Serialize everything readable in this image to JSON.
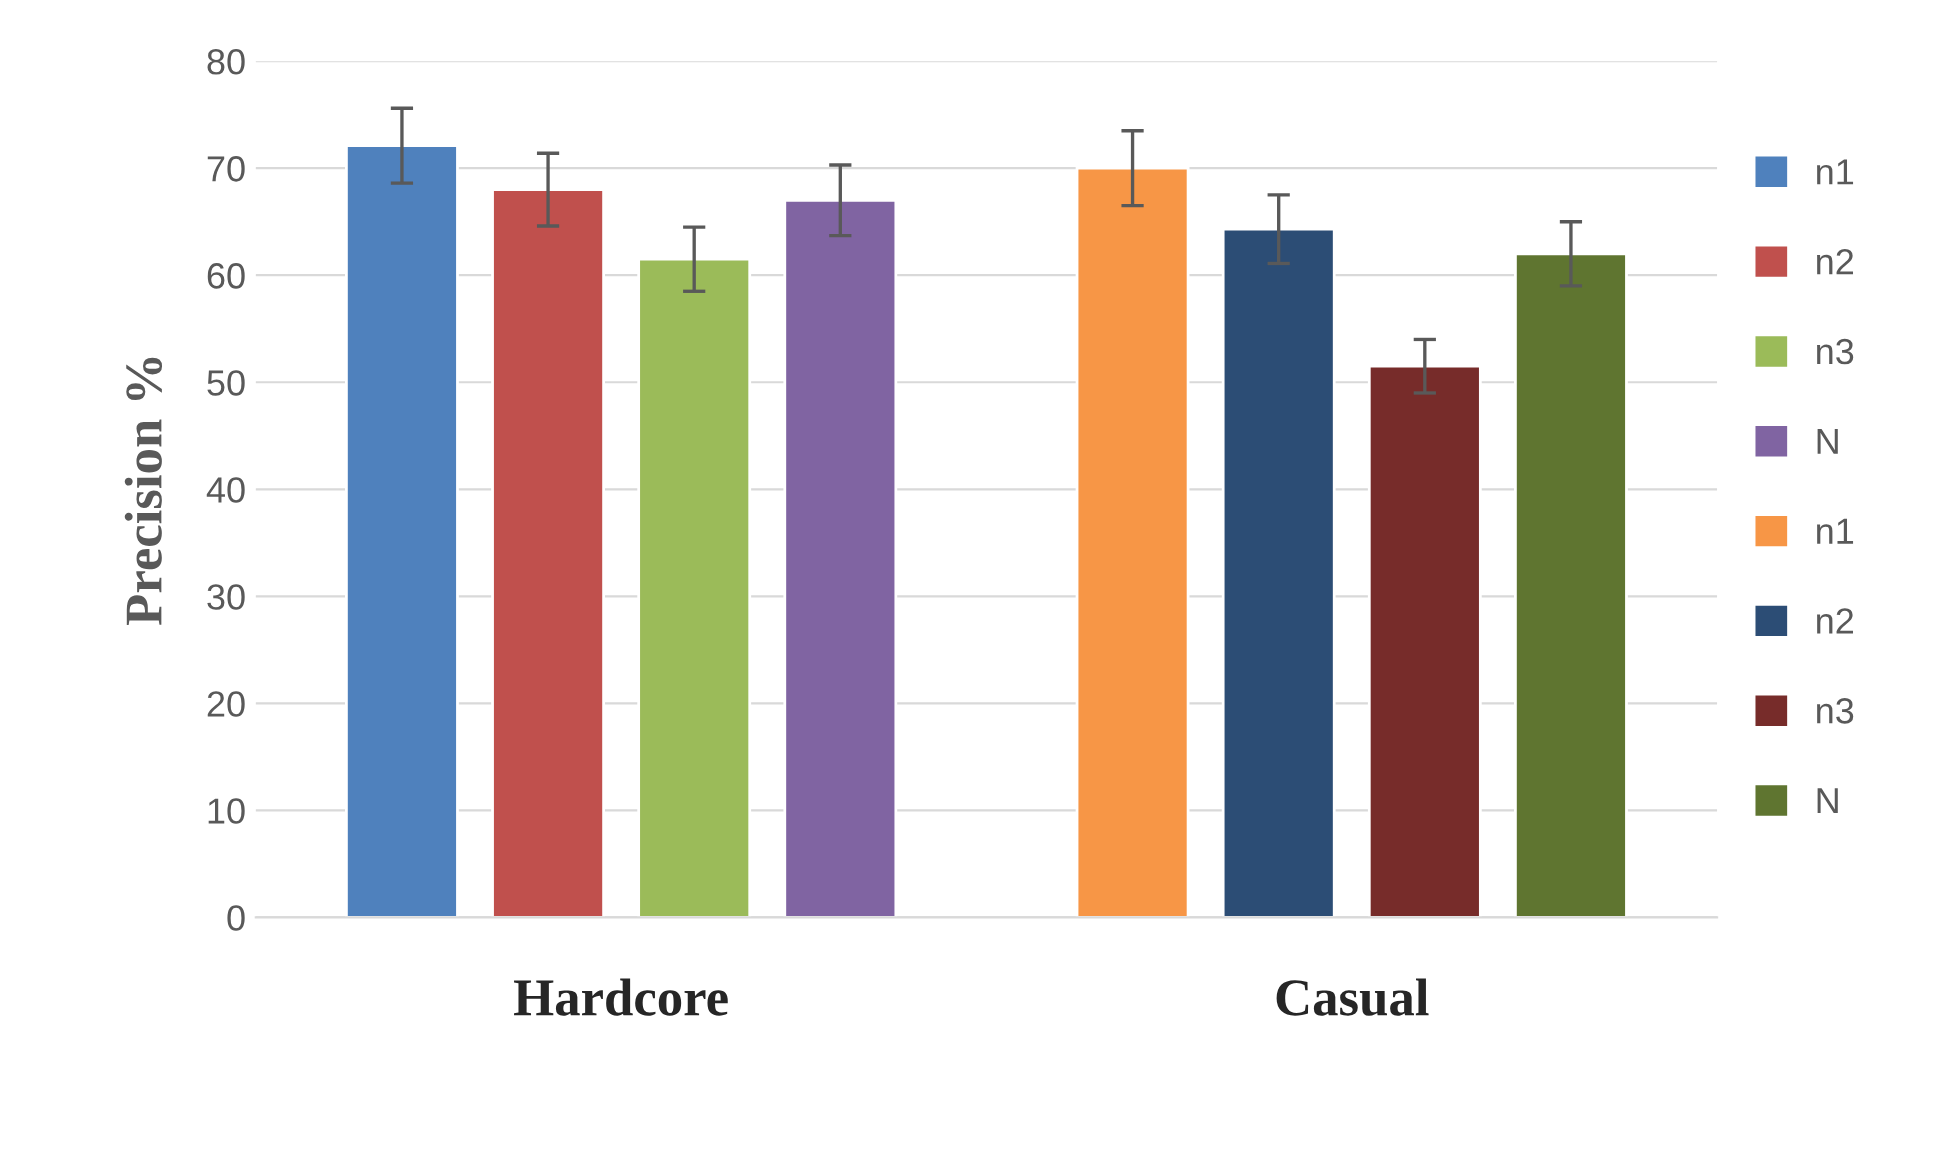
{
  "chart_data": {
    "type": "bar",
    "ylabel": "Precision %",
    "categories": [
      "Hardcore",
      "Casual"
    ],
    "series": [
      {
        "name": "n1",
        "color": "#4f81bd",
        "values": [
          72.1,
          null
        ],
        "errors": [
          3.5,
          null
        ]
      },
      {
        "name": "n2",
        "color": "#c0504d",
        "values": [
          68.0,
          null
        ],
        "errors": [
          3.4,
          null
        ]
      },
      {
        "name": "n3",
        "color": "#9bbb59",
        "values": [
          61.5,
          null
        ],
        "errors": [
          3.0,
          null
        ]
      },
      {
        "name": "N",
        "color": "#8064a2",
        "values": [
          67.0,
          null
        ],
        "errors": [
          3.3,
          null
        ]
      },
      {
        "name": "n1",
        "color": "#f79646",
        "values": [
          null,
          70.0
        ],
        "errors": [
          null,
          3.5
        ]
      },
      {
        "name": "n2",
        "color": "#2c4d75",
        "values": [
          null,
          64.3
        ],
        "errors": [
          null,
          3.2
        ]
      },
      {
        "name": "n3",
        "color": "#772c2a",
        "values": [
          null,
          51.5
        ],
        "errors": [
          null,
          2.5
        ]
      },
      {
        "name": "N",
        "color": "#5f7530",
        "values": [
          null,
          62.0
        ],
        "errors": [
          null,
          3.0
        ]
      }
    ],
    "ylim": [
      0,
      80
    ],
    "yticks": [
      0,
      10,
      20,
      30,
      40,
      50,
      60,
      70,
      80
    ],
    "grid": "y",
    "legend": "right"
  }
}
